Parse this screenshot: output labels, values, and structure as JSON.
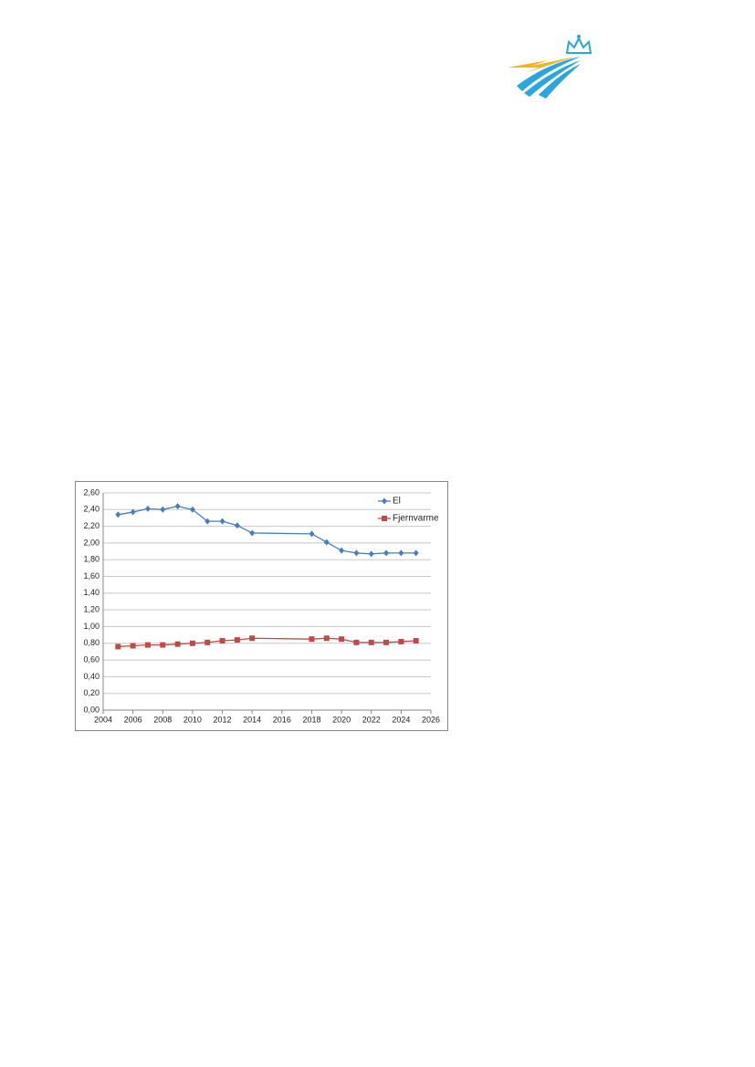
{
  "chart_data": {
    "type": "line",
    "x": [
      2005,
      2006,
      2007,
      2008,
      2009,
      2010,
      2011,
      2012,
      2013,
      2014,
      2018,
      2019,
      2020,
      2021,
      2022,
      2023,
      2024,
      2025
    ],
    "series": [
      {
        "name": "El",
        "color": "#4a7ebb",
        "marker": "diamond",
        "values": [
          2.34,
          2.37,
          2.41,
          2.4,
          2.44,
          2.4,
          2.26,
          2.26,
          2.21,
          2.12,
          2.11,
          2.01,
          1.91,
          1.88,
          1.87,
          1.88,
          1.88,
          1.88
        ]
      },
      {
        "name": "Fjernvarme",
        "color": "#be4b48",
        "marker": "square",
        "values": [
          0.76,
          0.77,
          0.78,
          0.78,
          0.79,
          0.8,
          0.81,
          0.83,
          0.84,
          0.86,
          0.85,
          0.86,
          0.85,
          0.81,
          0.81,
          0.81,
          0.82,
          0.83
        ]
      }
    ],
    "xlim": [
      2004,
      2026
    ],
    "xticks": [
      2004,
      2006,
      2008,
      2010,
      2012,
      2014,
      2016,
      2018,
      2020,
      2022,
      2024,
      2026
    ],
    "ylim": [
      0,
      2.6
    ],
    "yticks": [
      {
        "value": 0,
        "label": "0,00"
      },
      {
        "value": 0.2,
        "label": "0,20"
      },
      {
        "value": 0.4,
        "label": "0,40"
      },
      {
        "value": 0.6,
        "label": "0,60"
      },
      {
        "value": 0.8,
        "label": "0,80"
      },
      {
        "value": 1.0,
        "label": "1,00"
      },
      {
        "value": 1.2,
        "label": "1,20"
      },
      {
        "value": 1.4,
        "label": "1,40"
      },
      {
        "value": 1.6,
        "label": "1,60"
      },
      {
        "value": 1.8,
        "label": "1,80"
      },
      {
        "value": 2.0,
        "label": "2,00"
      },
      {
        "value": 2.2,
        "label": "2,20"
      },
      {
        "value": 2.4,
        "label": "2,40"
      },
      {
        "value": 2.6,
        "label": "2,60"
      }
    ],
    "grid": true,
    "legend": "top-right"
  }
}
